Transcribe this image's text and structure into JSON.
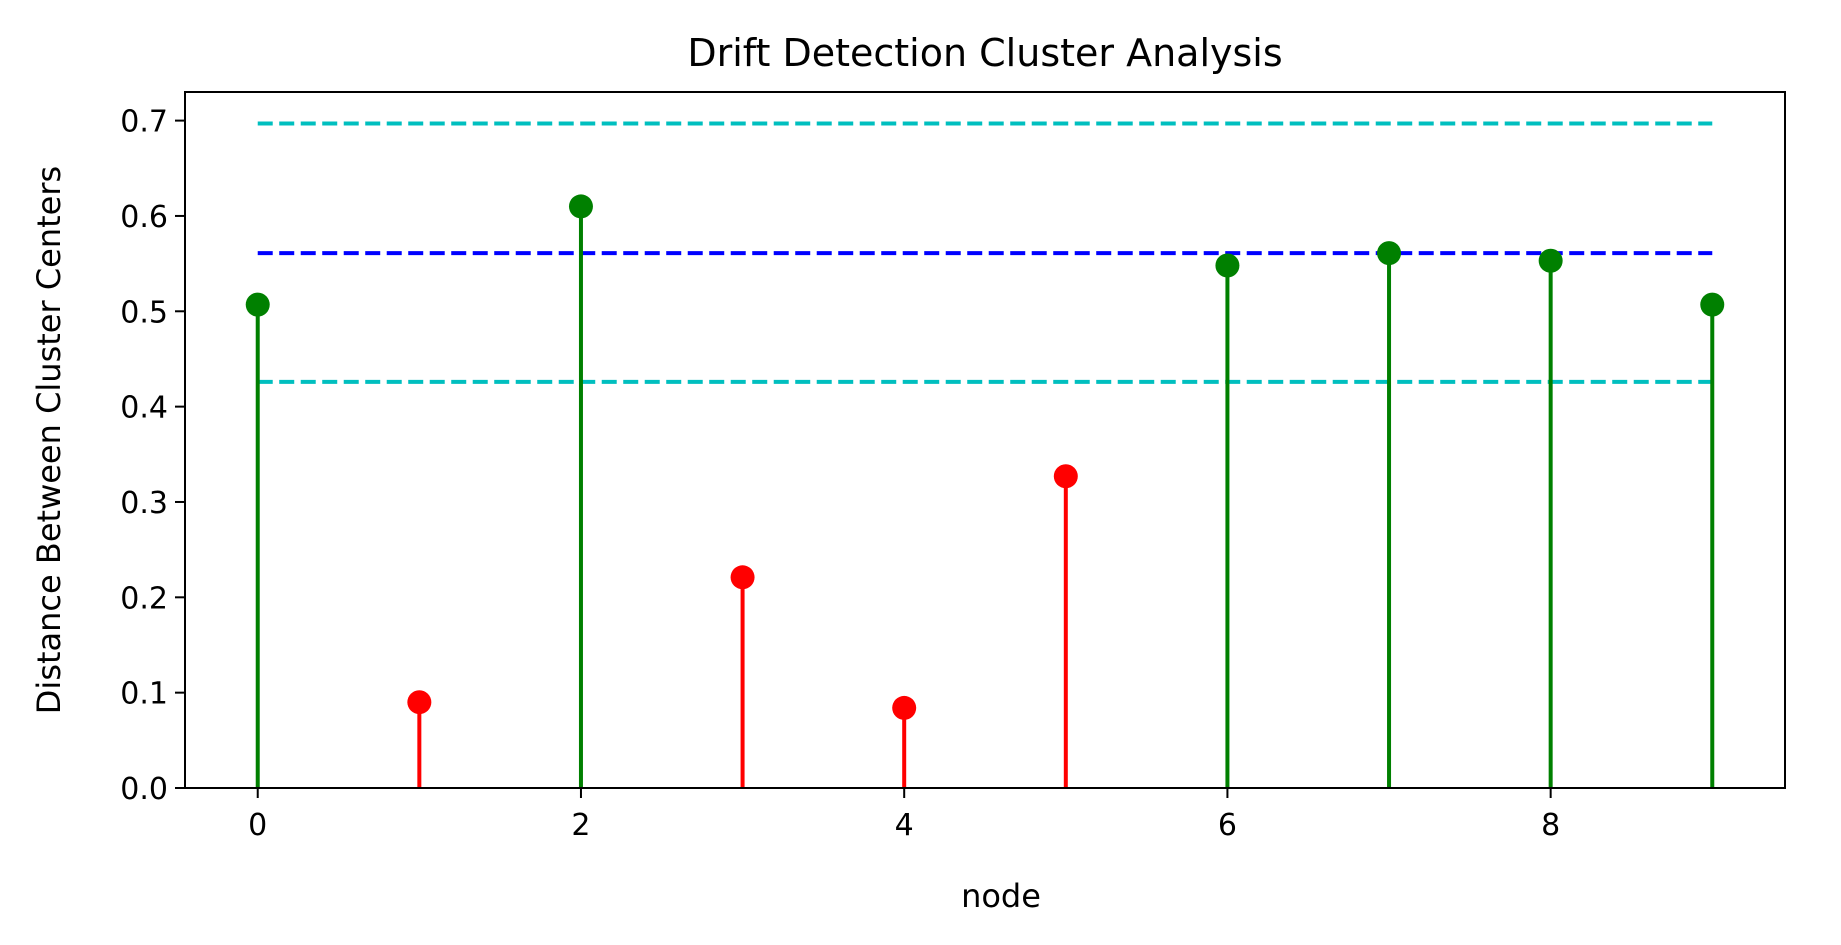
{
  "chart_data": {
    "type": "stem",
    "title": "Drift Detection Cluster Analysis",
    "xlabel": "node",
    "ylabel": "Distance Between Cluster Centers",
    "xlim": [
      -0.45,
      9.45
    ],
    "ylim": [
      0.0,
      0.73
    ],
    "xticks": [
      0,
      2,
      4,
      6,
      8
    ],
    "yticks": [
      0.0,
      0.1,
      0.2,
      0.3,
      0.4,
      0.5,
      0.6,
      0.7
    ],
    "x": [
      0,
      1,
      2,
      3,
      4,
      5,
      6,
      7,
      8,
      9
    ],
    "values": [
      0.507,
      0.09,
      0.61,
      0.221,
      0.084,
      0.327,
      0.548,
      0.561,
      0.553,
      0.507
    ],
    "point_colors": [
      "#008000",
      "#ff0000",
      "#008000",
      "#ff0000",
      "#ff0000",
      "#ff0000",
      "#008000",
      "#008000",
      "#008000",
      "#008000"
    ],
    "reference_lines": [
      {
        "y": 0.697,
        "color": "#00bfbf",
        "style": "dashed"
      },
      {
        "y": 0.561,
        "color": "#0000ff",
        "style": "dashed"
      },
      {
        "y": 0.426,
        "color": "#00bfbf",
        "style": "dashed"
      }
    ],
    "grid": false,
    "legend": "none"
  }
}
